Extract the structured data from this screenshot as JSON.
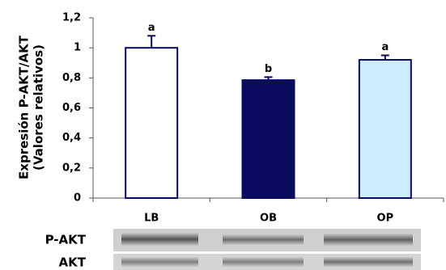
{
  "chart_data": {
    "type": "bar",
    "ylabel": [
      "Expresión P-AKT/AKT",
      "(Valores relativos)"
    ],
    "categories": [
      "LB",
      "OB",
      "OP"
    ],
    "values": [
      1.0,
      0.785,
      0.92
    ],
    "errors": [
      0.08,
      0.02,
      0.03
    ],
    "significance": [
      "a",
      "b",
      "a"
    ],
    "colors": [
      "#ffffff",
      "#0a0a5e",
      "#cdeeff"
    ],
    "edgecolor": "#0a0a5e",
    "ylim": [
      0,
      1.2
    ],
    "yticks": [
      0,
      {
        "value": 0.2,
        "label": "0,2"
      },
      {
        "value": 0.4,
        "label": "0,4"
      },
      {
        "value": 0.6,
        "label": "0,6"
      },
      {
        "value": 0.8,
        "label": "0,8"
      },
      1,
      {
        "value": 1.2,
        "label": "1,2"
      }
    ],
    "blot_labels": [
      "P-AKT",
      "AKT"
    ]
  }
}
